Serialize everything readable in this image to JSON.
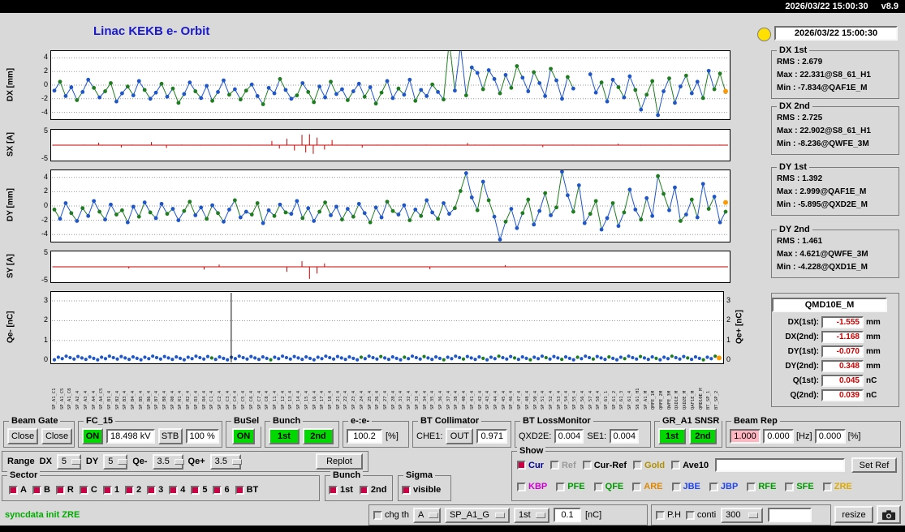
{
  "header": {
    "clock": "2026/03/22 15:00:30",
    "version": "v8.9"
  },
  "title": "Linac KEKB e- Orbit",
  "panel": {
    "clock": "2026/03/22 15:00:30"
  },
  "colors": {
    "blue_point": "#1f56c8",
    "green_point": "#1e7d1e",
    "red_stick": "#cc0000",
    "orange": "#ff9900",
    "on_green": "#00d800",
    "pink": "#ffb6c1",
    "value_red": "#cc0000"
  },
  "plots": {
    "dx": {
      "axis": "DX [mm]",
      "type": "orbit",
      "ymin": -5,
      "ymax": 5,
      "yticks": [
        4,
        2,
        0,
        -2,
        -4
      ],
      "grid": [
        4,
        2,
        0,
        -2,
        -4
      ],
      "y": [
        -0.8,
        0.5,
        -1.6,
        -0.3,
        -2.2,
        -1.0,
        0.8,
        -0.4,
        -1.8,
        -0.9,
        0.3,
        -2.4,
        -1.2,
        -0.2,
        -1.5,
        0.6,
        -0.7,
        -2.0,
        -1.1,
        0.2,
        -1.7,
        -0.5,
        -2.6,
        -1.3,
        0.4,
        -0.9,
        -1.9,
        -0.1,
        -2.3,
        -1.0,
        0.7,
        -1.4,
        -0.6,
        -2.1,
        -0.8,
        0.1,
        -1.6,
        -2.8,
        -0.4,
        -1.2,
        0.9,
        -0.7,
        -2.0,
        -1.5,
        0.3,
        -1.0,
        -2.5,
        -0.2,
        -1.8,
        0.5,
        -1.3,
        -0.6,
        -2.2,
        -0.9,
        0.2,
        -1.7,
        -0.3,
        -2.7,
        -1.1,
        0.6,
        -1.9,
        -0.5,
        -1.4,
        0.8,
        -2.3,
        -0.7,
        -1.6,
        0.1,
        -1.0,
        -2.1,
        6.5,
        -0.8,
        5.8,
        -1.5,
        2.6,
        1.8,
        -0.6,
        2.2,
        0.9,
        -1.2,
        1.5,
        -0.4,
        2.8,
        1.1,
        -0.9,
        1.9,
        0.3,
        -1.6,
        2.4,
        0.7,
        -2.0,
        1.2,
        -0.5,
        null,
        null,
        1.6,
        -1.1,
        0.4,
        -2.4,
        0.8,
        -0.3,
        -1.8,
        1.3,
        -0.7,
        -3.6,
        -1.4,
        0.6,
        -4.4,
        -0.9,
        1.0,
        -2.6,
        -0.2,
        1.4,
        -1.2,
        0.5,
        -1.9,
        2.1,
        -0.6,
        1.7,
        -1.0
      ],
      "colors": "bgbbgbbgbggbbgbbgbbgbggbbgbbgbbgbggbbgbbgbbgbggbbgbbgbbgbggbbgbbgbbgbggbbgbbgbbgbggbbgbbgbbgbggbbgbbgbbgbggbbgbbgbbgbggb",
      "end_dot": {
        "y": -0.9
      }
    },
    "sx": {
      "axis": "SX [A]",
      "type": "stick",
      "ymin": -5.5,
      "ymax": 5.5,
      "yticks": [
        5,
        -5
      ],
      "grid": [
        0
      ],
      "n": 180,
      "noise": 0.18,
      "big": {
        "12": 0.9,
        "18": -0.8,
        "26": 1.1,
        "30": -1.0,
        "58": 1.5,
        "60": -1.2,
        "62": 2.3,
        "64": -1.9,
        "66": 3.7,
        "67": -2.6,
        "68": 3.9,
        "69": -3.1,
        "70": 2.7,
        "72": -1.6,
        "74": 1.8,
        "82": -0.9,
        "110": 0.8,
        "130": -0.7,
        "150": 0.5
      }
    },
    "dy": {
      "axis": "DY [mm]",
      "type": "orbit",
      "ymin": -5,
      "ymax": 5,
      "yticks": [
        4,
        2,
        0,
        -2,
        -4
      ],
      "grid": [
        4,
        2,
        0,
        -2,
        -4
      ],
      "y": [
        -0.5,
        -1.8,
        0.4,
        -1.0,
        -2.1,
        -0.3,
        -1.4,
        0.7,
        -0.8,
        -1.9,
        0.2,
        -1.2,
        -0.6,
        -2.3,
        -0.1,
        -1.5,
        0.5,
        -0.9,
        -1.7,
        0.3,
        -1.1,
        -0.4,
        -2.0,
        -0.7,
        0.6,
        -1.3,
        -0.2,
        -1.8,
        0.1,
        -1.0,
        -2.2,
        -0.5,
        0.8,
        -1.6,
        -0.8,
        -1.2,
        0.4,
        -2.4,
        -0.6,
        -1.4,
        0.2,
        -0.9,
        -1.1,
        0.7,
        -1.7,
        -0.3,
        -2.1,
        -0.8,
        0.5,
        -1.3,
        -0.1,
        -1.9,
        -0.4,
        -1.5,
        0.3,
        -1.0,
        -2.3,
        -0.2,
        -1.6,
        0.6,
        -0.7,
        -1.2,
        0.1,
        -2.0,
        -0.5,
        -1.4,
        0.8,
        -0.9,
        -1.8,
        0.4,
        -1.1,
        -0.3,
        2.1,
        4.6,
        1.2,
        -0.6,
        3.4,
        0.8,
        -1.5,
        -4.7,
        -2.2,
        -0.4,
        -3.1,
        -1.0,
        0.9,
        -2.6,
        -0.7,
        1.8,
        -1.3,
        -0.2,
        4.8,
        1.5,
        -0.8,
        2.9,
        -2.4,
        -1.1,
        0.7,
        -3.3,
        -1.7,
        0.4,
        -2.8,
        -0.9,
        2.3,
        -0.5,
        -1.9,
        1.1,
        -1.4,
        4.2,
        1.7,
        -0.6,
        2.6,
        -2.1,
        -1.2,
        0.9,
        -1.6,
        3.1,
        -0.4,
        1.3,
        -2.3,
        -0.8
      ],
      "colors": "gbbgbgbbgbbggbbgbgbbgbbggbbgbgbbgbbggbbgbgbbgbbggbbgbgbbgbbggbbgbgbbgbbggbbgbgbbgbbggbbgbgbbgbbggbbgbgbbgbbggbbgbgbbgbbg",
      "end_dot": {
        "y": 0.5
      }
    },
    "sy": {
      "axis": "SY [A]",
      "type": "stick",
      "ymin": -5.5,
      "ymax": 5.5,
      "yticks": [
        5,
        -5
      ],
      "grid": [
        0
      ],
      "n": 180,
      "noise": 0.15,
      "big": {
        "20": -0.6,
        "40": -1.0,
        "44": 0.8,
        "62": -1.8,
        "66": 2.0,
        "68": -4.3,
        "70": -2.4,
        "72": 1.2,
        "100": -0.9,
        "120": 0.6
      }
    },
    "qe": {
      "axis": "Qe- [nC]",
      "axis_right": "Qe+ [nC]",
      "type": "dots",
      "ymin": -0.15,
      "ymax": 3.45,
      "yticks": [
        3,
        2,
        1,
        0
      ],
      "yticks_right": [
        3,
        2,
        1,
        0
      ],
      "grid": [
        3,
        2,
        1
      ],
      "n": 170,
      "base": 0.12,
      "var": 0.09,
      "green": [
        40,
        55,
        78,
        83,
        89,
        94,
        99,
        104,
        109,
        113,
        117,
        121,
        125,
        129,
        133,
        137,
        141,
        145,
        149,
        153,
        157,
        161,
        165,
        168
      ],
      "spike_x": 0.268,
      "end_dot": {
        "y": 0.12
      }
    }
  },
  "xlabels": [
    "SP_A1_C1",
    "SP_A1_C5",
    "SP_A1_C8",
    "SP_A2_4",
    "SP_A3_4",
    "SP_A4_4",
    "SP_A4_C5",
    "SP_B1_4",
    "SP_B2_4",
    "SP_B3_4",
    "SP_B4_4",
    "SP_B5_4",
    "SP_B6_4",
    "SP_B7_4",
    "SP_B8_4",
    "SP_R0_4",
    "SP_R1_4",
    "SP_R2_4",
    "SP_R3_4",
    "SP_R4_4",
    "SP_C1_4",
    "SP_C2_4",
    "SP_C3_4",
    "SP_C4_4",
    "SP_C5_4",
    "SP_C6_4",
    "SP_C7_4",
    "SP_C8_4",
    "SP_11_4",
    "SP_12_4",
    "SP_13_4",
    "SP_14_4",
    "SP_15_4",
    "SP_16_4",
    "SP_17_4",
    "SP_18_4",
    "SP_21_4",
    "SP_22_4",
    "SP_23_4",
    "SP_24_4",
    "SP_25_4",
    "SP_26_4",
    "SP_27_4",
    "SP_28_4",
    "SP_31_4",
    "SP_32_4",
    "SP_33_4",
    "SP_34_4",
    "SP_35_4",
    "SP_36_4",
    "SP_37_4",
    "SP_38_4",
    "SP_40_4",
    "SP_41_4",
    "SP_42_4",
    "SP_43_4",
    "SP_44_4",
    "SP_45_4",
    "SP_46_4",
    "SP_47_4",
    "SP_48_4",
    "SP_50_4",
    "SP_51_4",
    "SP_52_4",
    "SP_53_4",
    "SP_54_4",
    "SP_55_4",
    "SP_56_4",
    "SP_57_4",
    "SP_58_4",
    "SP_61_1",
    "SP_61_2",
    "SP_61_3",
    "SP_61_4",
    "S8_61_H1",
    "SP_A1_M",
    "QMFE_1M",
    "QMFE_2M",
    "QWFE_3M",
    "QXD1E_M",
    "QXD2E_M",
    "QAF1E_M",
    "QMD10E_M",
    "BT_SP_1",
    "BT_SP_2"
  ],
  "stats": [
    {
      "label": "DX 1st",
      "lines": [
        "RMS : 2.679",
        "Max : 22.331@S8_61_H1",
        "Min : -7.834@QAF1E_M"
      ]
    },
    {
      "label": "DX 2nd",
      "lines": [
        "RMS : 2.725",
        "Max : 22.902@S8_61_H1",
        "Min : -8.236@QWFE_3M"
      ]
    },
    {
      "label": "DY 1st",
      "lines": [
        "RMS : 1.392",
        "Max : 2.999@QAF1E_M",
        "Min : -5.895@QXD2E_M"
      ]
    },
    {
      "label": "DY 2nd",
      "lines": [
        "RMS : 1.461",
        "Max : 4.621@QWFE_3M",
        "Min : -4.228@QXD1E_M"
      ]
    }
  ],
  "qmd": {
    "title": "QMD10E_M",
    "rows": [
      {
        "label": "DX(1st):",
        "value": "-1.555",
        "unit": "mm"
      },
      {
        "label": "DX(2nd):",
        "value": "-1.168",
        "unit": "mm"
      },
      {
        "label": "DY(1st):",
        "value": "-0.070",
        "unit": "mm"
      },
      {
        "label": "DY(2nd):",
        "value": "0.348",
        "unit": "mm"
      },
      {
        "label": "Q(1st):",
        "value": "0.045",
        "unit": "nC"
      },
      {
        "label": "Q(2nd):",
        "value": "0.039",
        "unit": "nC"
      }
    ]
  },
  "beam_gate": {
    "label": "Beam Gate",
    "close1": "Close",
    "close2": "Close"
  },
  "fc15": {
    "label": "FC_15",
    "on": "ON",
    "kv": "18.498 kV",
    "stb": "STB",
    "pct": "100 %"
  },
  "busel": {
    "label": "BuSel",
    "on": "ON"
  },
  "bunch_sel": {
    "label": "Bunch",
    "b1": "1st",
    "b2": "2nd"
  },
  "ee": {
    "label": "e-:e-",
    "value": "100.2",
    "unit": "[%]"
  },
  "bt_collimator": {
    "label": "BT Collimator",
    "che1": "CHE1:",
    "out": "OUT",
    "value": "0.971"
  },
  "bt_loss": {
    "label": "BT LossMonitor",
    "l1": "QXD2E:",
    "v1": "0.004",
    "l2": "SE1:",
    "v2": "0.004"
  },
  "gr_a1": {
    "label": "GR_A1 SNSR",
    "b1": "1st",
    "b2": "2nd"
  },
  "beam_rep": {
    "label": "Beam Rep",
    "v1": "1.000",
    "v2": "0.000",
    "u1": "[Hz]",
    "v3": "0.000",
    "u2": "[%]"
  },
  "range": {
    "label": "Range",
    "dx_label": "DX",
    "dx": "5",
    "dy_label": "DY",
    "dy": "5",
    "qem_label": "Qe-",
    "qem": "3.5",
    "qep_label": "Qe+",
    "qep": "3.5",
    "replot": "Replot"
  },
  "show": {
    "label": "Show",
    "row1": [
      {
        "label": "Cur",
        "color": "#000099",
        "checked": true
      },
      {
        "label": "Ref",
        "color": "#9a9a9a",
        "checked": false
      },
      {
        "label": "Cur-Ref",
        "color": "#000000",
        "checked": false
      },
      {
        "label": "Gold",
        "color": "#b09000",
        "checked": false
      },
      {
        "label": "Ave10",
        "color": "#000000",
        "checked": false
      }
    ],
    "input": "",
    "set_ref": "Set Ref",
    "row2": [
      {
        "label": "KBP",
        "color": "#cc00cc",
        "checked": false
      },
      {
        "label": "PFE",
        "color": "#009900",
        "checked": false
      },
      {
        "label": "QFE",
        "color": "#009900",
        "checked": false
      },
      {
        "label": "ARE",
        "color": "#dd8800",
        "checked": false
      },
      {
        "label": "JBE",
        "color": "#2244ee",
        "checked": false
      },
      {
        "label": "JBP",
        "color": "#2244ee",
        "checked": false
      },
      {
        "label": "RFE",
        "color": "#009900",
        "checked": false
      },
      {
        "label": "SFE",
        "color": "#009900",
        "checked": false
      },
      {
        "label": "ZRE",
        "color": "#ddaa00",
        "checked": false
      }
    ]
  },
  "sector": {
    "label": "Sector",
    "items": [
      {
        "label": "A",
        "checked": true
      },
      {
        "label": "B",
        "checked": true
      },
      {
        "label": "R",
        "checked": true
      },
      {
        "label": "C",
        "checked": true
      },
      {
        "label": "1",
        "checked": true
      },
      {
        "label": "2",
        "checked": true
      },
      {
        "label": "3",
        "checked": true
      },
      {
        "label": "4",
        "checked": true
      },
      {
        "label": "5",
        "checked": true
      },
      {
        "label": "6",
        "checked": true
      },
      {
        "label": "BT",
        "checked": true
      }
    ]
  },
  "bunch_chk": {
    "label": "Bunch",
    "items": [
      {
        "label": "1st",
        "checked": true
      },
      {
        "label": "2nd",
        "checked": true
      }
    ]
  },
  "sigma": {
    "label": "Sigma",
    "items": [
      {
        "label": "visible",
        "checked": true
      }
    ]
  },
  "status": "syncdata init ZRE",
  "bottom": {
    "chgth": {
      "label": "chg th",
      "checked": false
    },
    "sel_a": "A",
    "sel_sp": "SP_A1_G",
    "sel_bunch": "1st",
    "threshold": "0.1",
    "unit": "[nC]",
    "ph": {
      "label": "P.H",
      "checked": false
    },
    "conti": {
      "label": "conti",
      "checked": false
    },
    "sel_rep": "300",
    "input": "",
    "resize": "resize"
  }
}
